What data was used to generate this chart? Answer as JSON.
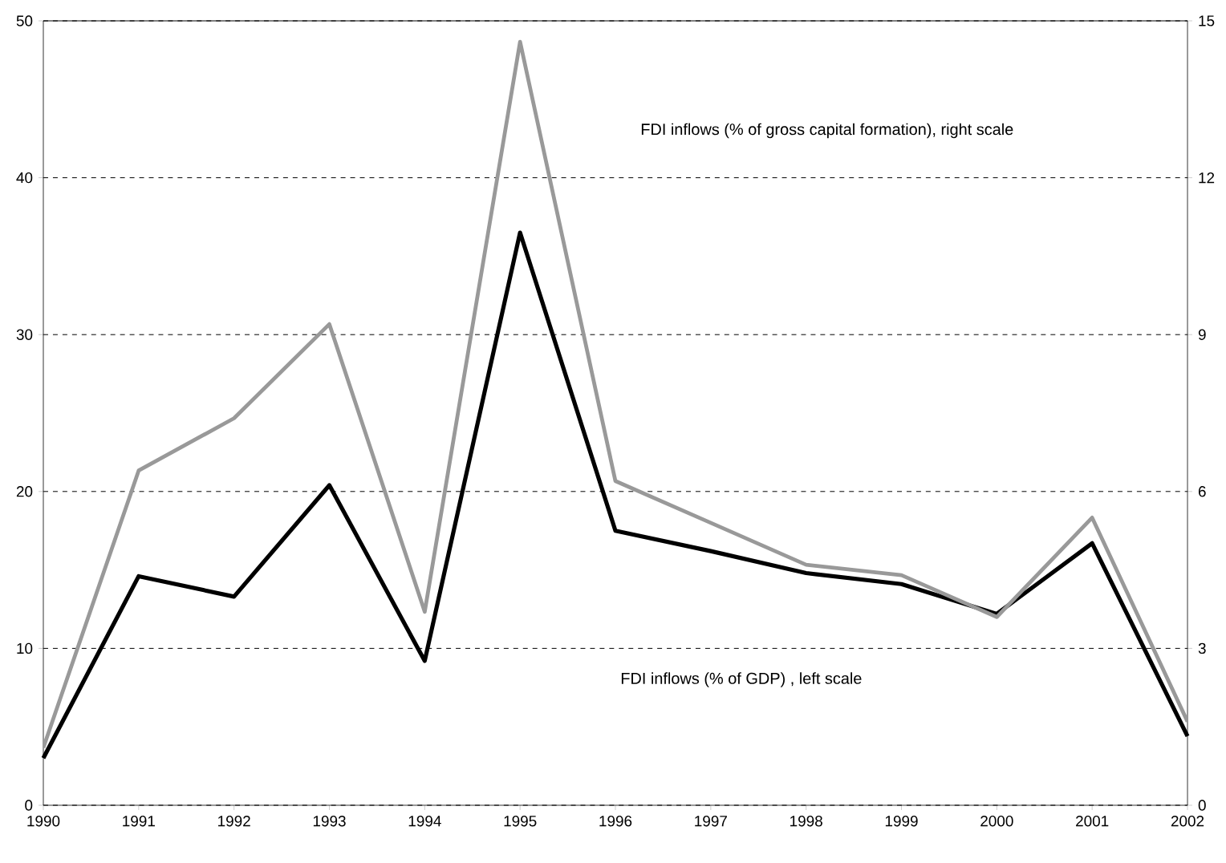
{
  "chart_data": {
    "type": "line",
    "x": [
      1990,
      1991,
      1992,
      1993,
      1994,
      1995,
      1996,
      1997,
      1998,
      1999,
      2000,
      2001,
      2002
    ],
    "series": [
      {
        "color": "#000000",
        "values": [
          3.0,
          14.6,
          13.3,
          20.4,
          9.2,
          36.5,
          17.5,
          16.2,
          14.8,
          14.1,
          12.2,
          16.7,
          4.4
        ]
      },
      {
        "color": "#999999",
        "axis": "y2",
        "values": [
          1.1,
          6.4,
          7.4,
          9.2,
          3.7,
          14.6,
          6.2,
          5.4,
          4.6,
          4.4,
          3.6,
          5.5,
          1.6
        ]
      }
    ],
    "xlim": [
      1990,
      2002
    ],
    "xticks": [
      1990,
      1991,
      1992,
      1993,
      1994,
      1995,
      1996,
      1997,
      1998,
      1999,
      2000,
      2001,
      2002
    ],
    "ylim": [
      0,
      50
    ],
    "yticks": [
      0,
      10,
      20,
      30,
      40,
      50
    ],
    "y2lim": [
      0,
      15
    ],
    "y2ticks": [
      0,
      3,
      6,
      9,
      12,
      15
    ],
    "grid": "y",
    "marker": "none",
    "line_style": "solid",
    "annotations": [
      "FDI inflows (% of gross capital formation), right scale",
      "FDI inflows (% of GDP) , left scale"
    ]
  }
}
